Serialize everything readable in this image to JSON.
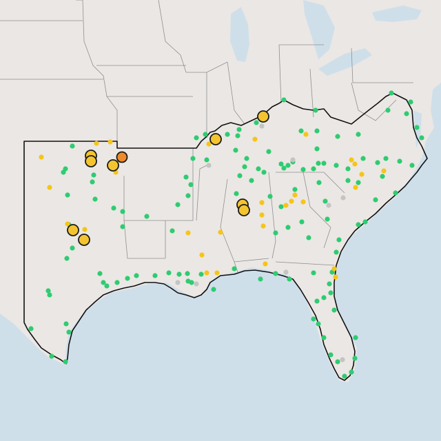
{
  "colors": {
    "water": "#cfdfea",
    "land": "#ebe7e4",
    "state_border": "#8f8f8f",
    "region_outline": "#111111",
    "dot_green": "#2ecc71",
    "dot_yellow": "#f5c518",
    "dot_gray": "#c4c4c4",
    "marker_yellow": "#f4c430",
    "marker_orange": "#ee8a2a",
    "marker_stroke": "#1a1a1a"
  },
  "icons": {
    "station": "circle-dot-icon",
    "highlight": "circle-marker-icon"
  }
}
